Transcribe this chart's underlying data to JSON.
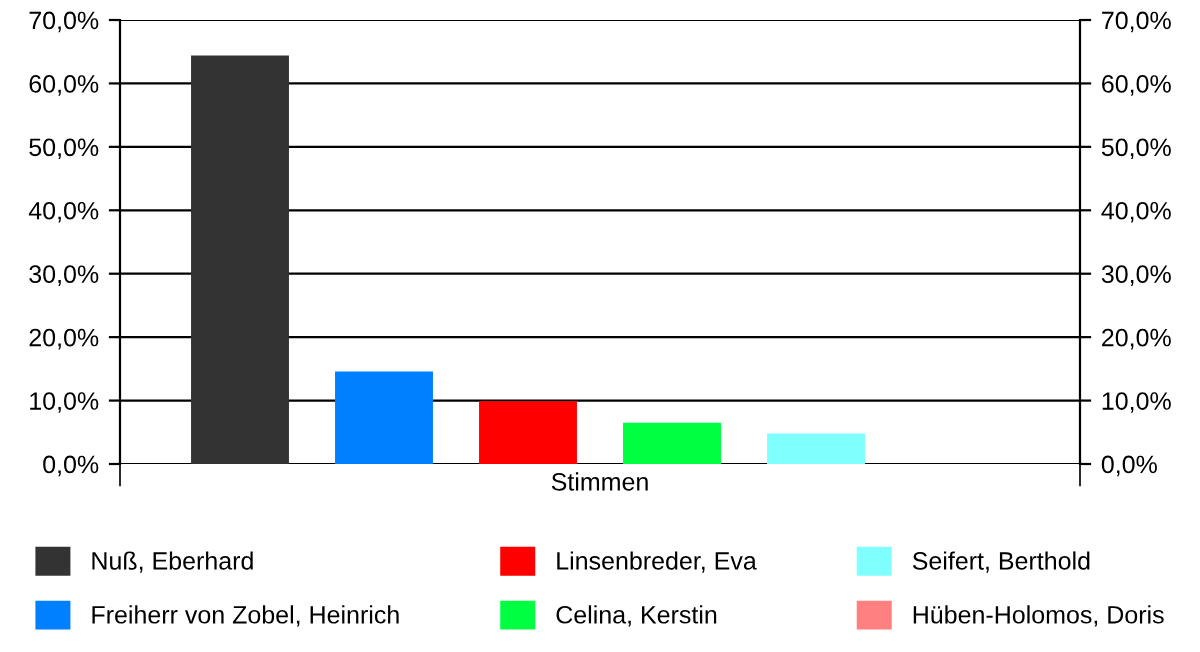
{
  "chart_data": {
    "type": "bar",
    "categories": [
      "Stimmen"
    ],
    "series": [
      {
        "name": "Nuß, Eberhard",
        "color": "#333333",
        "values": [
          64.4
        ]
      },
      {
        "name": "Freiherr von Zobel, Heinrich",
        "color": "#0080ff",
        "values": [
          14.6
        ]
      },
      {
        "name": "Linsenbreder, Eva",
        "color": "#ff0000",
        "values": [
          9.9
        ]
      },
      {
        "name": "Celina, Kerstin",
        "color": "#00ff40",
        "values": [
          6.5
        ]
      },
      {
        "name": "Seifert, Berthold",
        "color": "#80ffff",
        "values": [
          4.8
        ]
      },
      {
        "name": "Hüben-Holomos, Doris",
        "color": "#ff8080",
        "values": [
          0
        ]
      }
    ],
    "ylim": [
      0,
      70
    ],
    "yticks": [
      {
        "value": 0,
        "label": "0,0%"
      },
      {
        "value": 10,
        "label": "10,0%"
      },
      {
        "value": 20,
        "label": "20,0%"
      },
      {
        "value": 30,
        "label": "30,0%"
      },
      {
        "value": 40,
        "label": "40,0%"
      },
      {
        "value": 50,
        "label": "50,0%"
      },
      {
        "value": 60,
        "label": "60,0%"
      },
      {
        "value": 70,
        "label": "70,0%"
      }
    ],
    "grid": "y",
    "legend": "bottom"
  }
}
